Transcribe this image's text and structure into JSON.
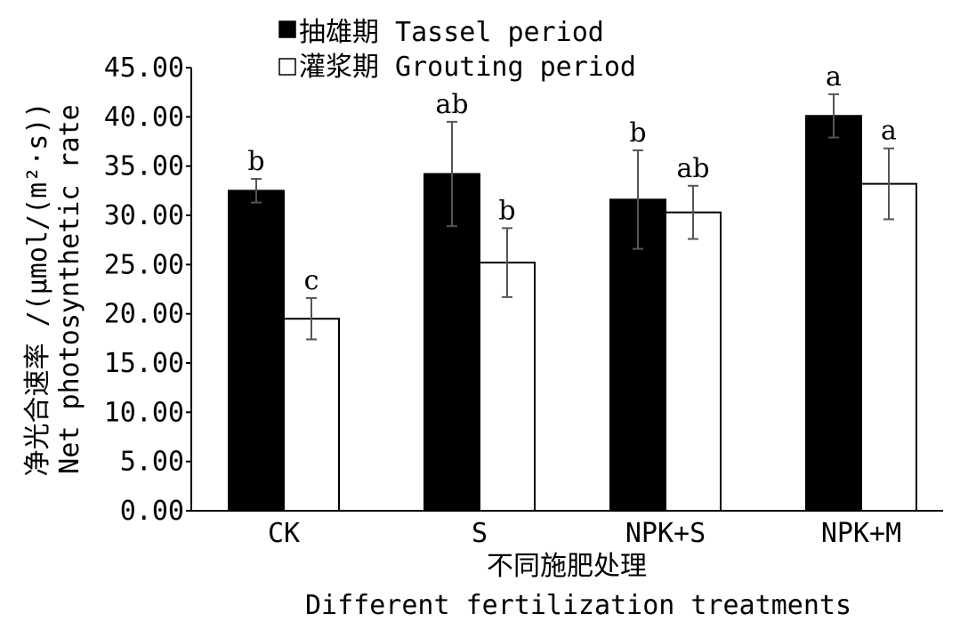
{
  "chart_data": {
    "type": "bar",
    "xlabel_cn": "不同施肥处理",
    "xlabel_en": "Different fertilization treatments",
    "ylabel_cn": "净光合速率 /(μmol/(m²·s))",
    "ylabel_en": "Net photosynthetic rate",
    "ylim": [
      0,
      45
    ],
    "yticks": [
      "0.00",
      "5.00",
      "10.00",
      "15.00",
      "20.00",
      "25.00",
      "30.00",
      "35.00",
      "40.00",
      "45.00"
    ],
    "categories": [
      "CK",
      "S",
      "NPK+S",
      "NPK+M"
    ],
    "legend_position": "top-center",
    "grid": false,
    "series": [
      {
        "name": "抽雄期 Tassel period",
        "color": "#000000",
        "values": [
          32.5,
          34.2,
          31.6,
          40.1
        ],
        "errors": [
          1.2,
          5.3,
          5.0,
          2.2
        ],
        "sig": [
          "b",
          "ab",
          "b",
          "a"
        ]
      },
      {
        "name": "灌浆期 Grouting period",
        "color": "#ffffff",
        "values": [
          19.5,
          25.2,
          30.3,
          33.2
        ],
        "errors": [
          2.1,
          3.5,
          2.7,
          3.6
        ],
        "sig": [
          "c",
          "b",
          "ab",
          "a"
        ]
      }
    ]
  }
}
